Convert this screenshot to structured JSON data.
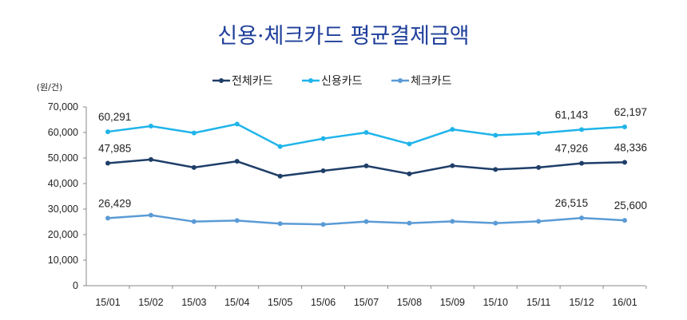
{
  "chart_data": {
    "type": "line",
    "title": "신용·체크카드 평균결제금액",
    "unit_label": "(원/건)",
    "xlabel": "",
    "ylabel": "",
    "ylim": [
      0,
      70000
    ],
    "yticks": [
      "0",
      "10,000",
      "20,000",
      "30,000",
      "40,000",
      "50,000",
      "60,000",
      "70,000"
    ],
    "ytick_values": [
      0,
      10000,
      20000,
      30000,
      40000,
      50000,
      60000,
      70000
    ],
    "grid": false,
    "legend_position": "top-center",
    "categories": [
      "15/01",
      "15/02",
      "15/03",
      "15/04",
      "15/05",
      "15/06",
      "15/07",
      "15/08",
      "15/09",
      "15/10",
      "15/11",
      "15/12",
      "16/01"
    ],
    "series": [
      {
        "name": "전체카드",
        "color": "#1f3e68",
        "values": [
          47985,
          49400,
          46300,
          48700,
          42900,
          45000,
          46900,
          43800,
          47000,
          45500,
          46300,
          47926,
          48336
        ],
        "labels": {
          "0": "47,985",
          "11": "47,926",
          "12": "48,336"
        }
      },
      {
        "name": "신용카드",
        "color": "#1fb4ea",
        "values": [
          60291,
          62500,
          59800,
          63300,
          54500,
          57600,
          60000,
          55500,
          61200,
          58900,
          59700,
          61143,
          62197
        ],
        "labels": {
          "0": "60,291",
          "11": "61,143",
          "12": "62,197"
        }
      },
      {
        "name": "체크카드",
        "color": "#5b9bd5",
        "values": [
          26429,
          27600,
          25100,
          25500,
          24300,
          24000,
          25100,
          24500,
          25200,
          24500,
          25200,
          26515,
          25600
        ],
        "labels": {
          "0": "26,429",
          "11": "26,515",
          "12": "25,600"
        }
      }
    ]
  }
}
